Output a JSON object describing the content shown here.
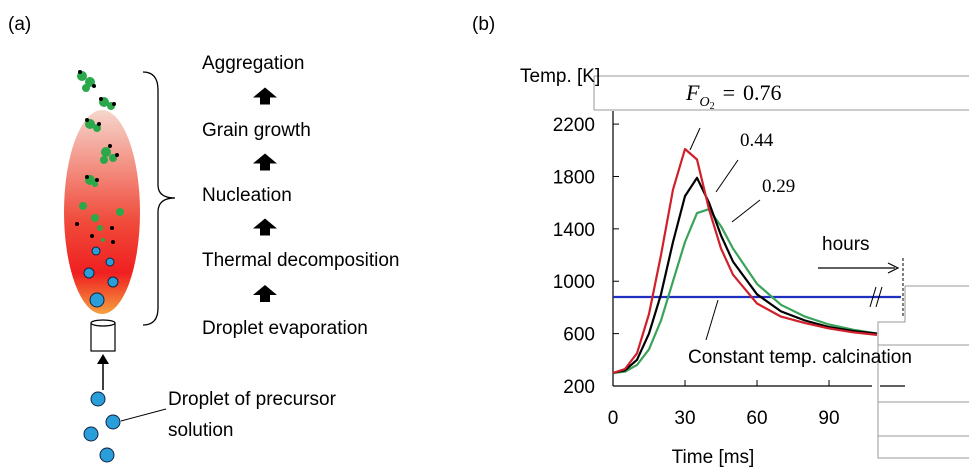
{
  "panel_a": {
    "label": "(a)",
    "stages": [
      "Aggregation",
      "Grain growth",
      "Nucleation",
      "Thermal decomposition",
      "Droplet evaporation"
    ],
    "droplet_label": [
      "Droplet of precursor",
      "solution"
    ]
  },
  "chart_data": {
    "type": "line",
    "panel_label": "(b)",
    "y_label": "Temp. [K]",
    "x_label": "Time [ms]",
    "f_label": {
      "symbol": "F",
      "subscript": "O",
      "subsubscript": "2",
      "equals": "="
    },
    "hours_label": "hours",
    "x": [
      0,
      5,
      10,
      15,
      20,
      25,
      30,
      35,
      40,
      45,
      50,
      60,
      70,
      80,
      90,
      100,
      110,
      120
    ],
    "series": [
      {
        "name": "0.76",
        "color": "#d0202a",
        "values": [
          300,
          330,
          450,
          750,
          1200,
          1700,
          2010,
          1930,
          1550,
          1250,
          1050,
          830,
          730,
          680,
          640,
          610,
          590,
          null
        ]
      },
      {
        "name": "0.44",
        "color": "#000000",
        "values": [
          300,
          320,
          400,
          600,
          900,
          1300,
          1650,
          1790,
          1600,
          1350,
          1150,
          900,
          770,
          700,
          650,
          620,
          600,
          null
        ]
      },
      {
        "name": "0.29",
        "color": "#3aa35a",
        "values": [
          300,
          310,
          360,
          480,
          700,
          1000,
          1300,
          1520,
          1550,
          1420,
          1250,
          980,
          820,
          730,
          670,
          630,
          600,
          null
        ]
      },
      {
        "name": "Constant temp. calcination",
        "color": "#1f2fbf",
        "values": [
          880,
          880,
          880,
          880,
          880,
          880,
          880,
          880,
          880,
          880,
          880,
          880,
          880,
          880,
          880,
          880,
          880,
          880
        ]
      }
    ],
    "xlim": [
      0,
      120
    ],
    "ylim": [
      200,
      2300
    ],
    "xticks": [
      0,
      30,
      60,
      90
    ],
    "yticks": [
      200,
      600,
      1000,
      1400,
      1800,
      2200
    ]
  }
}
